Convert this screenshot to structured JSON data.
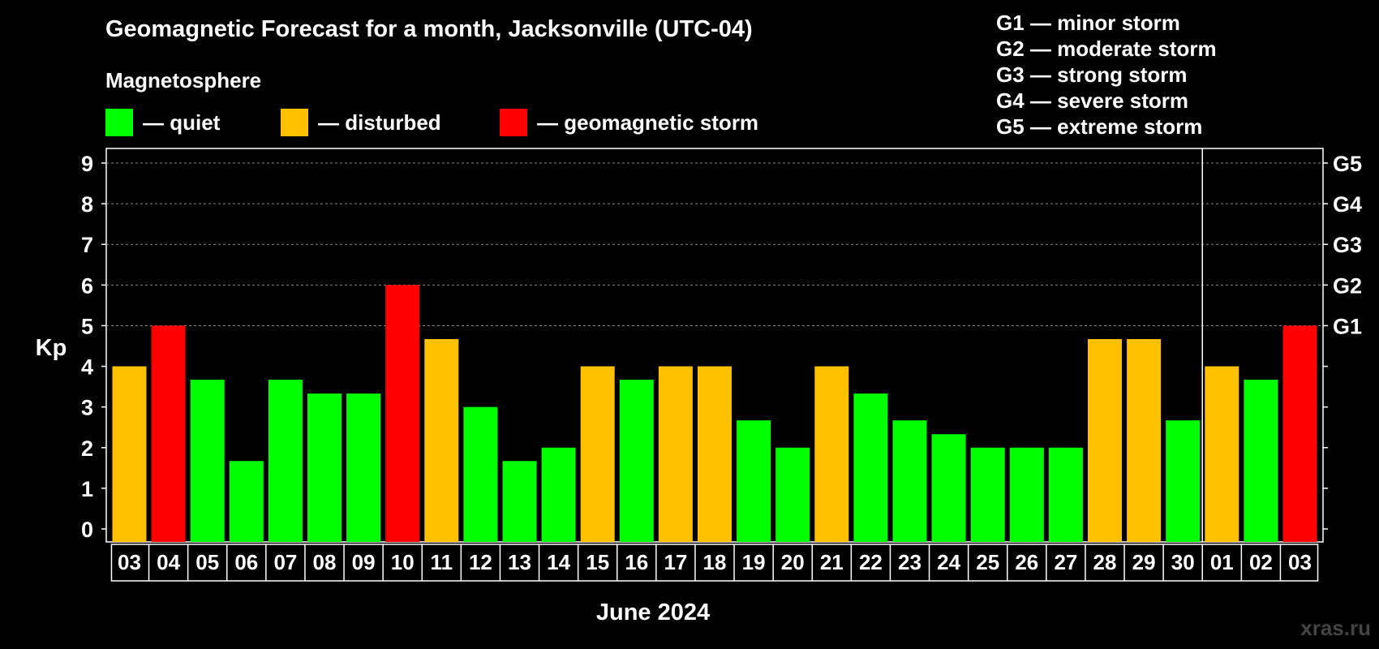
{
  "header": {
    "title": "Geomagnetic Forecast for a month, Jacksonville (UTC-04)",
    "subtitle": "Magnetosphere"
  },
  "legend": [
    {
      "label": "— quiet",
      "color": "#00ff00"
    },
    {
      "label": "— disturbed",
      "color": "#ffc000"
    },
    {
      "label": "— geomagnetic storm",
      "color": "#ff0000"
    }
  ],
  "storm_scale": [
    "G1 — minor storm",
    "G2 — moderate storm",
    "G3 — strong storm",
    "G4 — severe storm",
    "G5 — extreme storm"
  ],
  "watermark": "xras.ru",
  "chart_data": {
    "type": "bar",
    "title": "Geomagnetic Forecast for a month, Jacksonville (UTC-04)",
    "xlabel": "June 2024",
    "ylabel": "Kp",
    "ylim": [
      0,
      9
    ],
    "yticks": [
      "0",
      "1",
      "2",
      "3",
      "4",
      "5",
      "6",
      "7",
      "8",
      "9"
    ],
    "right_axis_labels": [
      {
        "kp": 5,
        "label": "G1"
      },
      {
        "kp": 6,
        "label": "G2"
      },
      {
        "kp": 7,
        "label": "G3"
      },
      {
        "kp": 8,
        "label": "G4"
      },
      {
        "kp": 9,
        "label": "G5"
      }
    ],
    "month_separator_after": "30",
    "categories": [
      "03",
      "04",
      "05",
      "06",
      "07",
      "08",
      "09",
      "10",
      "11",
      "12",
      "13",
      "14",
      "15",
      "16",
      "17",
      "18",
      "19",
      "20",
      "21",
      "22",
      "23",
      "24",
      "25",
      "26",
      "27",
      "28",
      "29",
      "30",
      "01",
      "02",
      "03"
    ],
    "values": [
      4,
      5,
      3.67,
      1.67,
      3.67,
      3.33,
      3.33,
      6,
      4.67,
      3,
      1.67,
      2,
      4,
      3.67,
      4,
      4,
      2.67,
      2,
      4,
      3.33,
      2.67,
      2.33,
      2,
      2,
      2,
      4.67,
      4.67,
      2.67,
      4,
      3.67,
      5
    ],
    "status": [
      "disturbed",
      "storm",
      "quiet",
      "quiet",
      "quiet",
      "quiet",
      "quiet",
      "storm",
      "disturbed",
      "quiet",
      "quiet",
      "quiet",
      "disturbed",
      "quiet",
      "disturbed",
      "disturbed",
      "quiet",
      "quiet",
      "disturbed",
      "quiet",
      "quiet",
      "quiet",
      "quiet",
      "quiet",
      "quiet",
      "disturbed",
      "disturbed",
      "quiet",
      "disturbed",
      "quiet",
      "storm"
    ],
    "status_colors": {
      "quiet": "#00ff00",
      "disturbed": "#ffc000",
      "storm": "#ff0000"
    }
  }
}
